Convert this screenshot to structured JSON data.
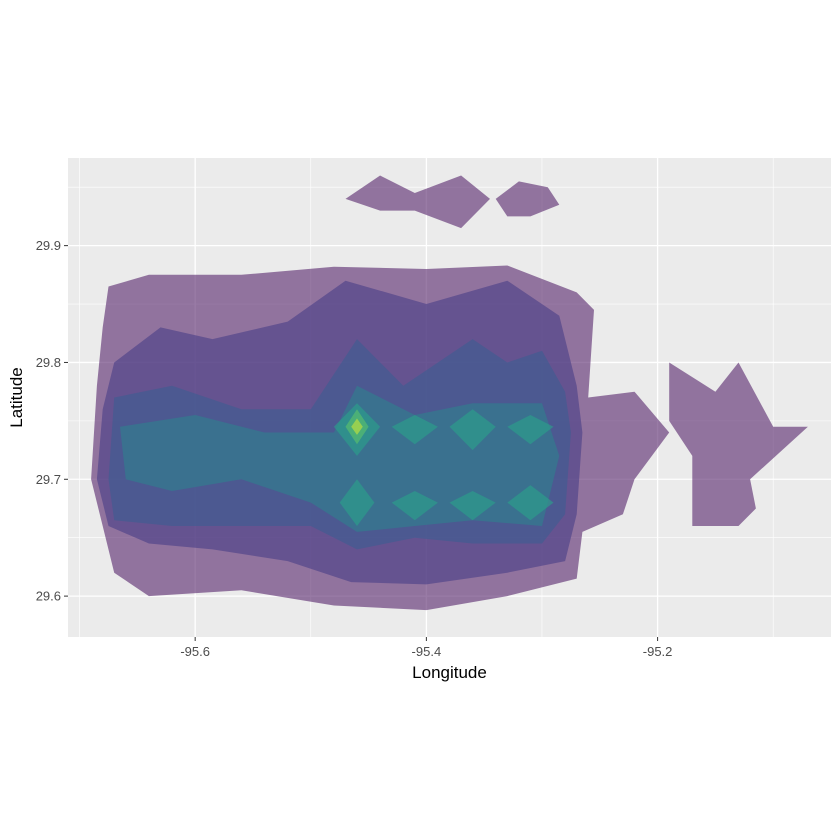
{
  "chart_data": {
    "type": "contour",
    "xlabel": "Longitude",
    "ylabel": "Latitude",
    "xlim": [
      -95.71,
      -95.05
    ],
    "ylim": [
      29.565,
      29.975
    ],
    "x_ticks": [
      -95.6,
      -95.4,
      -95.2
    ],
    "x_tick_labels": [
      "-95.6",
      "-95.4",
      "-95.2"
    ],
    "y_ticks": [
      29.6,
      29.7,
      29.8,
      29.9
    ],
    "y_tick_labels": [
      "29.6",
      "29.7",
      "29.8",
      "29.9"
    ],
    "grid": true,
    "legend": "none",
    "panel_background": "#ebebeb",
    "grid_color": "#ffffff",
    "fill_palette": [
      "#5b2a70",
      "#4a3f88",
      "#3e5e92",
      "#2f7f8e",
      "#2aa28a",
      "#5cc46a",
      "#c6e43a"
    ],
    "fill_opacity": 0.62,
    "levels": [
      {
        "level": 1,
        "regions": [
          [
            [
              -95.675,
              29.865
            ],
            [
              -95.64,
              29.875
            ],
            [
              -95.56,
              29.875
            ],
            [
              -95.48,
              29.882
            ],
            [
              -95.4,
              29.88
            ],
            [
              -95.33,
              29.883
            ],
            [
              -95.27,
              29.86
            ],
            [
              -95.255,
              29.845
            ],
            [
              -95.26,
              29.77
            ],
            [
              -95.22,
              29.775
            ],
            [
              -95.19,
              29.74
            ],
            [
              -95.22,
              29.7
            ],
            [
              -95.23,
              29.67
            ],
            [
              -95.265,
              29.655
            ],
            [
              -95.27,
              29.615
            ],
            [
              -95.33,
              29.6
            ],
            [
              -95.4,
              29.588
            ],
            [
              -95.48,
              29.592
            ],
            [
              -95.56,
              29.605
            ],
            [
              -95.64,
              29.6
            ],
            [
              -95.67,
              29.62
            ],
            [
              -95.68,
              29.66
            ],
            [
              -95.69,
              29.7
            ],
            [
              -95.685,
              29.78
            ],
            [
              -95.68,
              29.83
            ]
          ],
          [
            [
              -95.19,
              29.8
            ],
            [
              -95.15,
              29.775
            ],
            [
              -95.13,
              29.8
            ],
            [
              -95.1,
              29.745
            ],
            [
              -95.07,
              29.745
            ],
            [
              -95.12,
              29.7
            ],
            [
              -95.115,
              29.675
            ],
            [
              -95.13,
              29.66
            ],
            [
              -95.17,
              29.66
            ],
            [
              -95.17,
              29.72
            ],
            [
              -95.19,
              29.75
            ]
          ],
          [
            [
              -95.47,
              29.94
            ],
            [
              -95.44,
              29.96
            ],
            [
              -95.41,
              29.945
            ],
            [
              -95.37,
              29.96
            ],
            [
              -95.345,
              29.94
            ],
            [
              -95.37,
              29.915
            ],
            [
              -95.41,
              29.93
            ],
            [
              -95.44,
              29.93
            ]
          ],
          [
            [
              -95.34,
              29.94
            ],
            [
              -95.32,
              29.955
            ],
            [
              -95.295,
              29.95
            ],
            [
              -95.285,
              29.935
            ],
            [
              -95.31,
              29.925
            ],
            [
              -95.33,
              29.925
            ]
          ]
        ]
      },
      {
        "level": 2,
        "regions": [
          [
            [
              -95.67,
              29.8
            ],
            [
              -95.63,
              29.83
            ],
            [
              -95.585,
              29.82
            ],
            [
              -95.52,
              29.835
            ],
            [
              -95.47,
              29.87
            ],
            [
              -95.4,
              29.85
            ],
            [
              -95.33,
              29.87
            ],
            [
              -95.285,
              29.84
            ],
            [
              -95.27,
              29.78
            ],
            [
              -95.265,
              29.74
            ],
            [
              -95.27,
              29.67
            ],
            [
              -95.28,
              29.63
            ],
            [
              -95.33,
              29.62
            ],
            [
              -95.4,
              29.61
            ],
            [
              -95.465,
              29.612
            ],
            [
              -95.52,
              29.63
            ],
            [
              -95.585,
              29.64
            ],
            [
              -95.64,
              29.645
            ],
            [
              -95.675,
              29.66
            ],
            [
              -95.685,
              29.7
            ],
            [
              -95.68,
              29.76
            ]
          ]
        ]
      },
      {
        "level": 3,
        "regions": [
          [
            [
              -95.67,
              29.77
            ],
            [
              -95.62,
              29.78
            ],
            [
              -95.56,
              29.76
            ],
            [
              -95.5,
              29.76
            ],
            [
              -95.46,
              29.82
            ],
            [
              -95.42,
              29.78
            ],
            [
              -95.36,
              29.82
            ],
            [
              -95.33,
              29.8
            ],
            [
              -95.3,
              29.81
            ],
            [
              -95.28,
              29.775
            ],
            [
              -95.275,
              29.74
            ],
            [
              -95.28,
              29.67
            ],
            [
              -95.3,
              29.645
            ],
            [
              -95.36,
              29.645
            ],
            [
              -95.41,
              29.65
            ],
            [
              -95.46,
              29.64
            ],
            [
              -95.5,
              29.66
            ],
            [
              -95.56,
              29.66
            ],
            [
              -95.62,
              29.66
            ],
            [
              -95.67,
              29.665
            ],
            [
              -95.675,
              29.7
            ]
          ]
        ]
      },
      {
        "level": 4,
        "regions": [
          [
            [
              -95.665,
              29.745
            ],
            [
              -95.6,
              29.755
            ],
            [
              -95.54,
              29.74
            ],
            [
              -95.48,
              29.74
            ],
            [
              -95.46,
              29.78
            ],
            [
              -95.41,
              29.755
            ],
            [
              -95.36,
              29.765
            ],
            [
              -95.3,
              29.765
            ],
            [
              -95.285,
              29.72
            ],
            [
              -95.3,
              29.66
            ],
            [
              -95.36,
              29.665
            ],
            [
              -95.41,
              29.66
            ],
            [
              -95.46,
              29.655
            ],
            [
              -95.5,
              29.68
            ],
            [
              -95.56,
              29.7
            ],
            [
              -95.62,
              29.69
            ],
            [
              -95.66,
              29.7
            ]
          ]
        ]
      },
      {
        "level": 5,
        "regions": [
          [
            [
              -95.48,
              29.745
            ],
            [
              -95.46,
              29.765
            ],
            [
              -95.44,
              29.745
            ],
            [
              -95.46,
              29.72
            ]
          ],
          [
            [
              -95.43,
              29.745
            ],
            [
              -95.41,
              29.755
            ],
            [
              -95.39,
              29.745
            ],
            [
              -95.41,
              29.73
            ]
          ],
          [
            [
              -95.38,
              29.745
            ],
            [
              -95.36,
              29.76
            ],
            [
              -95.34,
              29.745
            ],
            [
              -95.36,
              29.725
            ]
          ],
          [
            [
              -95.33,
              29.745
            ],
            [
              -95.31,
              29.755
            ],
            [
              -95.29,
              29.745
            ],
            [
              -95.31,
              29.73
            ]
          ],
          [
            [
              -95.475,
              29.68
            ],
            [
              -95.46,
              29.7
            ],
            [
              -95.445,
              29.68
            ],
            [
              -95.46,
              29.66
            ]
          ],
          [
            [
              -95.43,
              29.68
            ],
            [
              -95.41,
              29.69
            ],
            [
              -95.39,
              29.68
            ],
            [
              -95.41,
              29.665
            ]
          ],
          [
            [
              -95.38,
              29.68
            ],
            [
              -95.36,
              29.69
            ],
            [
              -95.34,
              29.68
            ],
            [
              -95.36,
              29.665
            ]
          ],
          [
            [
              -95.33,
              29.68
            ],
            [
              -95.31,
              29.695
            ],
            [
              -95.29,
              29.68
            ],
            [
              -95.31,
              29.665
            ]
          ]
        ]
      },
      {
        "level": 6,
        "regions": [
          [
            [
              -95.47,
              29.745
            ],
            [
              -95.46,
              29.76
            ],
            [
              -95.45,
              29.745
            ],
            [
              -95.46,
              29.73
            ]
          ]
        ]
      },
      {
        "level": 7,
        "regions": [
          [
            [
              -95.465,
              29.745
            ],
            [
              -95.46,
              29.752
            ],
            [
              -95.455,
              29.745
            ],
            [
              -95.46,
              29.738
            ]
          ]
        ]
      }
    ]
  }
}
